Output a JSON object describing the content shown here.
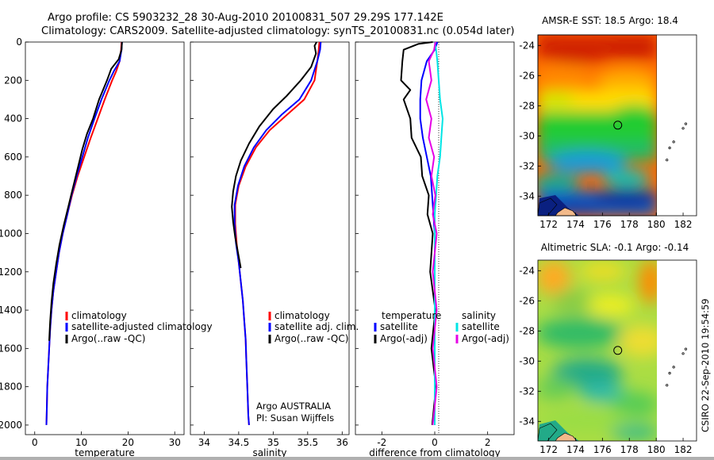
{
  "header": {
    "line1": "Argo profile: CS 5903232_28 30-Aug-2010 20100831_507 29.29S 177.142E",
    "line2": "Climatology: CARS2009. Satellite-adjusted climatology: synTS_20100831.nc (0.054d later)"
  },
  "credits": {
    "side": "CSIRO 22-Sep-2010 19:54:59",
    "argo_line1": "Argo AUSTRALIA",
    "argo_line2": "PI: Susan Wijffels"
  },
  "colors": {
    "climatology": "#ff0000",
    "satellite": "#0000ff",
    "argo": "#000000",
    "sal_satellite": "#00e5e5",
    "sal_argo": "#e600e6"
  },
  "chart_data": [
    {
      "type": "line",
      "name": "temperature",
      "xlabel": "temperature",
      "xticks": [
        0,
        10,
        20,
        30
      ],
      "xlim": [
        -2,
        32
      ],
      "ylim": [
        2050,
        0
      ],
      "yticks": [
        0,
        200,
        400,
        600,
        800,
        1000,
        1200,
        1400,
        1600,
        1800,
        2000
      ],
      "legend": [
        "climatology",
        "satellite-adjusted climatology",
        "Argo(..raw -QC)"
      ],
      "series": [
        {
          "name": "climatology",
          "color": "#ff0000",
          "points": [
            [
              18.6,
              0
            ],
            [
              18.5,
              40
            ],
            [
              18.2,
              100
            ],
            [
              17.5,
              150
            ],
            [
              16.6,
              200
            ],
            [
              15.0,
              300
            ],
            [
              13.5,
              400
            ],
            [
              12.0,
              500
            ],
            [
              10.6,
              600
            ],
            [
              9.2,
              700
            ],
            [
              8.0,
              800
            ],
            [
              7.0,
              900
            ],
            [
              6.0,
              1000
            ],
            [
              5.2,
              1100
            ],
            [
              4.6,
              1200
            ],
            [
              4.0,
              1300
            ],
            [
              3.6,
              1400
            ],
            [
              3.3,
              1500
            ],
            [
              3.1,
              1600
            ],
            [
              2.9,
              1700
            ],
            [
              2.7,
              1800
            ],
            [
              2.6,
              1900
            ],
            [
              2.5,
              2000
            ]
          ]
        },
        {
          "name": "satellite-adjusted climatology",
          "color": "#0000ff",
          "points": [
            [
              18.7,
              0
            ],
            [
              18.6,
              40
            ],
            [
              18.2,
              100
            ],
            [
              17.0,
              150
            ],
            [
              16.0,
              200
            ],
            [
              14.3,
              300
            ],
            [
              12.8,
              400
            ],
            [
              11.4,
              500
            ],
            [
              10.2,
              600
            ],
            [
              9.0,
              700
            ],
            [
              7.9,
              800
            ],
            [
              7.0,
              900
            ],
            [
              6.0,
              1000
            ],
            [
              5.2,
              1100
            ],
            [
              4.6,
              1200
            ],
            [
              4.0,
              1300
            ],
            [
              3.6,
              1400
            ],
            [
              3.3,
              1500
            ],
            [
              3.1,
              1600
            ],
            [
              2.9,
              1700
            ],
            [
              2.7,
              1800
            ],
            [
              2.6,
              1900
            ],
            [
              2.5,
              2000
            ]
          ]
        },
        {
          "name": "Argo(..raw -QC)",
          "color": "#000000",
          "points": [
            [
              18.7,
              0
            ],
            [
              18.6,
              40
            ],
            [
              18.0,
              90
            ],
            [
              16.4,
              140
            ],
            [
              15.5,
              200
            ],
            [
              13.8,
              300
            ],
            [
              12.5,
              400
            ],
            [
              11.2,
              480
            ],
            [
              10.2,
              560
            ],
            [
              9.3,
              650
            ],
            [
              8.2,
              760
            ],
            [
              7.2,
              860
            ],
            [
              6.2,
              960
            ],
            [
              5.3,
              1060
            ],
            [
              4.6,
              1160
            ],
            [
              4.0,
              1260
            ],
            [
              3.6,
              1360
            ],
            [
              3.3,
              1460
            ],
            [
              3.1,
              1560
            ]
          ]
        }
      ]
    },
    {
      "type": "line",
      "name": "salinity",
      "xlabel": "salinity",
      "xticks": [
        34,
        34.5,
        35,
        35.5,
        36
      ],
      "xlim": [
        33.8,
        36.1
      ],
      "ylim": [
        2050,
        0
      ],
      "legend": [
        "climatology",
        "satellite adj. clim.",
        "Argo(..raw -QC)"
      ],
      "series": [
        {
          "name": "climatology",
          "color": "#ff0000",
          "points": [
            [
              35.67,
              0
            ],
            [
              35.66,
              40
            ],
            [
              35.64,
              100
            ],
            [
              35.6,
              200
            ],
            [
              35.45,
              300
            ],
            [
              35.2,
              380
            ],
            [
              34.95,
              460
            ],
            [
              34.75,
              550
            ],
            [
              34.6,
              650
            ],
            [
              34.5,
              750
            ],
            [
              34.45,
              850
            ],
            [
              34.45,
              950
            ],
            [
              34.47,
              1050
            ],
            [
              34.5,
              1150
            ],
            [
              34.53,
              1250
            ],
            [
              34.56,
              1350
            ],
            [
              34.58,
              1450
            ],
            [
              34.6,
              1550
            ],
            [
              34.61,
              1650
            ],
            [
              34.62,
              1750
            ],
            [
              34.63,
              1850
            ],
            [
              34.64,
              1950
            ],
            [
              34.65,
              2000
            ]
          ]
        },
        {
          "name": "satellite adj. clim.",
          "color": "#0000ff",
          "points": [
            [
              35.69,
              0
            ],
            [
              35.68,
              40
            ],
            [
              35.64,
              100
            ],
            [
              35.55,
              200
            ],
            [
              35.38,
              300
            ],
            [
              35.12,
              380
            ],
            [
              34.9,
              460
            ],
            [
              34.72,
              550
            ],
            [
              34.58,
              650
            ],
            [
              34.49,
              750
            ],
            [
              34.44,
              850
            ],
            [
              34.44,
              950
            ],
            [
              34.46,
              1050
            ],
            [
              34.5,
              1150
            ],
            [
              34.53,
              1250
            ],
            [
              34.56,
              1350
            ],
            [
              34.58,
              1450
            ],
            [
              34.6,
              1550
            ],
            [
              34.61,
              1650
            ],
            [
              34.62,
              1750
            ],
            [
              34.63,
              1850
            ],
            [
              34.64,
              1950
            ],
            [
              34.65,
              2000
            ]
          ]
        },
        {
          "name": "Argo(..raw -QC)",
          "color": "#000000",
          "points": [
            [
              35.63,
              0
            ],
            [
              35.6,
              20
            ],
            [
              35.62,
              60
            ],
            [
              35.55,
              130
            ],
            [
              35.4,
              200
            ],
            [
              35.2,
              280
            ],
            [
              35.0,
              350
            ],
            [
              34.8,
              440
            ],
            [
              34.65,
              530
            ],
            [
              34.53,
              620
            ],
            [
              34.46,
              700
            ],
            [
              34.42,
              780
            ],
            [
              34.4,
              860
            ],
            [
              34.42,
              940
            ],
            [
              34.45,
              1020
            ],
            [
              34.49,
              1100
            ],
            [
              34.53,
              1180
            ]
          ]
        }
      ]
    },
    {
      "type": "line",
      "name": "difference",
      "xlabel": "difference from climatology",
      "xticks": [
        -2,
        0,
        2
      ],
      "xlim": [
        -3.0,
        3.0
      ],
      "ylim": [
        2050,
        0
      ],
      "legend_titles": [
        "temperature",
        "salinity"
      ],
      "legend": [
        "satellite",
        "Argo(-adj)",
        "satellite",
        "Argo(-adj)"
      ],
      "series": [
        {
          "name": "temperature satellite",
          "color": "#0000ff",
          "points": [
            [
              0.1,
              0
            ],
            [
              0.0,
              40
            ],
            [
              -0.3,
              100
            ],
            [
              -0.5,
              200
            ],
            [
              -0.55,
              300
            ],
            [
              -0.55,
              400
            ],
            [
              -0.45,
              500
            ],
            [
              -0.3,
              600
            ],
            [
              -0.15,
              700
            ],
            [
              -0.1,
              800
            ],
            [
              -0.05,
              900
            ],
            [
              0,
              1000
            ],
            [
              0,
              1200
            ],
            [
              0,
              1400
            ],
            [
              0,
              1600
            ],
            [
              0,
              1800
            ],
            [
              0,
              2000
            ]
          ]
        },
        {
          "name": "temperature Argo(-adj)",
          "color": "#000000",
          "points": [
            [
              0,
              0
            ],
            [
              -0.7,
              10
            ],
            [
              -1.1,
              40
            ],
            [
              -1.3,
              100
            ],
            [
              -1.2,
              200
            ],
            [
              -1.0,
              250
            ],
            [
              -1.1,
              300
            ],
            [
              -1.0,
              400
            ],
            [
              -0.8,
              500
            ],
            [
              -0.6,
              600
            ],
            [
              -0.4,
              700
            ],
            [
              -0.3,
              800
            ],
            [
              -0.2,
              900
            ],
            [
              -0.15,
              1000
            ],
            [
              -0.1,
              1200
            ],
            [
              -0.05,
              1400
            ],
            [
              -0.05,
              1600
            ],
            [
              -0.03,
              1800
            ],
            [
              -0.02,
              2000
            ]
          ]
        },
        {
          "name": "salinity satellite",
          "color": "#00e5e5",
          "points": [
            [
              0.0,
              0
            ],
            [
              0.05,
              40
            ],
            [
              0.1,
              100
            ],
            [
              0.15,
              200
            ],
            [
              0.2,
              300
            ],
            [
              0.3,
              400
            ],
            [
              0.25,
              500
            ],
            [
              0.2,
              600
            ],
            [
              0.1,
              700
            ],
            [
              0.05,
              800
            ],
            [
              0,
              900
            ],
            [
              0,
              1000
            ],
            [
              0,
              1200
            ],
            [
              0,
              1400
            ],
            [
              0,
              1600
            ],
            [
              0,
              1800
            ],
            [
              0,
              2000
            ]
          ]
        },
        {
          "name": "salinity Argo(-adj)",
          "color": "#e600e6",
          "points": [
            [
              0.1,
              0
            ],
            [
              -0.1,
              40
            ],
            [
              -0.15,
              100
            ],
            [
              -0.2,
              200
            ],
            [
              -0.25,
              300
            ],
            [
              -0.2,
              400
            ],
            [
              -0.15,
              500
            ],
            [
              -0.1,
              600
            ],
            [
              -0.05,
              700
            ],
            [
              -0.05,
              800
            ],
            [
              0,
              900
            ],
            [
              0,
              1000
            ],
            [
              0,
              1200
            ],
            [
              0,
              1400
            ],
            [
              0,
              1600
            ],
            [
              0,
              1800
            ],
            [
              0,
              2000
            ]
          ]
        }
      ]
    },
    {
      "type": "heatmap",
      "name": "amsr-e-map",
      "title": "AMSR-E SST: 18.5  Argo: 18.4",
      "xticks": [
        172,
        174,
        176,
        178,
        180,
        182
      ],
      "yticks": [
        -24,
        -26,
        -28,
        -30,
        -32,
        -34
      ],
      "xlim": [
        171.2,
        183
      ],
      "ylim": [
        -35.3,
        -23.3
      ],
      "float_lon": 177.142,
      "float_lat": -29.29,
      "islands": [
        [
          181.0,
          -30.8
        ],
        [
          181.3,
          -30.4
        ],
        [
          182.0,
          -29.5
        ],
        [
          182.2,
          -29.2
        ],
        [
          180.8,
          -31.6
        ]
      ]
    },
    {
      "type": "heatmap",
      "name": "sla-map",
      "title": "Altimetric SLA: -0.1  Argo: -0.14",
      "xticks": [
        172,
        174,
        176,
        178,
        180,
        182
      ],
      "yticks": [
        -24,
        -26,
        -28,
        -30,
        -32,
        -34
      ],
      "xlim": [
        171.2,
        183
      ],
      "ylim": [
        -35.3,
        -23.3
      ],
      "float_lon": 177.142,
      "float_lat": -29.29,
      "islands": [
        [
          181.0,
          -30.8
        ],
        [
          181.3,
          -30.4
        ],
        [
          182.0,
          -29.5
        ],
        [
          182.2,
          -29.2
        ],
        [
          180.8,
          -31.6
        ]
      ]
    }
  ]
}
